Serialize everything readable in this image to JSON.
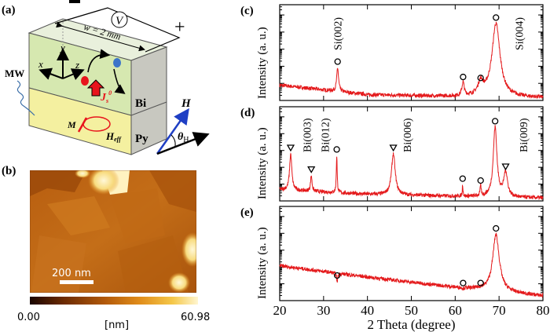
{
  "panel_labels": {
    "a": "(a)",
    "b": "(b)",
    "c": "(c)",
    "d": "(d)",
    "e": "(e)"
  },
  "diagram": {
    "voltmeter": "V",
    "plus": "+",
    "width_label": "w = 2 mm",
    "axis_x": "x",
    "axis_y": "y",
    "axis_z": "z",
    "microwave": "MW",
    "spin_current": "J",
    "spin_current_sub": "s",
    "spin_current_sup": "0",
    "layer_top": "Bi",
    "layer_bottom": "Py",
    "magnetization": "M",
    "effective_field": "H",
    "effective_field_sub": "eff",
    "field": "H",
    "angle": "θ",
    "angle_sub": "H",
    "colors": {
      "bi_layer": "#d6e8b0",
      "py_layer": "#f4f0a0",
      "spin_up": "#e8141c",
      "spin_down": "#3b74c9",
      "field": "#1f3fc4"
    }
  },
  "afm": {
    "scale_bar": "200 nm",
    "colorbar_min": "0.00",
    "colorbar_max": "60.98",
    "colorbar_unit": "[nm]",
    "colormap": [
      "#1a0500",
      "#6b2a02",
      "#b35a0a",
      "#e08c1a",
      "#f5c84a",
      "#fff6d0"
    ]
  },
  "chart_data": [
    {
      "panel": "c",
      "type": "line",
      "xlabel": "2 Theta (degree)",
      "ylabel": "Intensity (a. u.)",
      "xlim": [
        20,
        80
      ],
      "yscale": "log",
      "color": "#e41a1c",
      "xticks": [
        20,
        30,
        40,
        50,
        60,
        70,
        80
      ],
      "baseline": [
        [
          20,
          0.16
        ],
        [
          40,
          0.06
        ],
        [
          60,
          0.04
        ],
        [
          80,
          0.03
        ]
      ],
      "peaks": [
        {
          "position": 33.2,
          "intensity": 0.34,
          "width": 0.25,
          "marker": "circle"
        },
        {
          "position": 61.8,
          "intensity": 0.18,
          "width": 0.3,
          "marker": "circle"
        },
        {
          "position": 65.8,
          "intensity": 0.17,
          "width": 0.7,
          "marker": "circle"
        },
        {
          "position": 69.3,
          "intensity": 0.8,
          "width": 1.1,
          "marker": "circle"
        }
      ],
      "annotations": [
        {
          "text": "Si(002)",
          "x": 33.2
        },
        {
          "text": "Si(004)",
          "x": 74.5
        }
      ]
    },
    {
      "panel": "d",
      "type": "line",
      "xlabel": "2 Theta (degree)",
      "ylabel": "Intensity (a. u.)",
      "xlim": [
        20,
        80
      ],
      "yscale": "log",
      "color": "#e41a1c",
      "xticks": [
        20,
        30,
        40,
        50,
        60,
        70,
        80
      ],
      "baseline": [
        [
          20,
          0.12
        ],
        [
          40,
          0.07
        ],
        [
          60,
          0.05
        ],
        [
          80,
          0.03
        ]
      ],
      "peaks": [
        {
          "position": 22.5,
          "intensity": 0.5,
          "width": 0.3,
          "marker": "triangle"
        },
        {
          "position": 27.2,
          "intensity": 0.27,
          "width": 0.2,
          "marker": "triangle"
        },
        {
          "position": 33.0,
          "intensity": 0.48,
          "width": 0.12,
          "marker": "circle"
        },
        {
          "position": 45.9,
          "intensity": 0.5,
          "width": 0.5,
          "marker": "triangle"
        },
        {
          "position": 61.7,
          "intensity": 0.17,
          "width": 0.1,
          "marker": "circle"
        },
        {
          "position": 65.8,
          "intensity": 0.15,
          "width": 0.15,
          "marker": "circle"
        },
        {
          "position": 69.1,
          "intensity": 0.78,
          "width": 0.5,
          "marker": "circle"
        },
        {
          "position": 71.5,
          "intensity": 0.3,
          "width": 0.5,
          "marker": "triangle"
        }
      ],
      "annotations": [
        {
          "text": "Bi(003)",
          "x": 26.2
        },
        {
          "text": "Bi(012)",
          "x": 30.3
        },
        {
          "text": "Bi(006)",
          "x": 49.0
        },
        {
          "text": "Bi(009)",
          "x": 75.5
        }
      ]
    },
    {
      "panel": "e",
      "type": "line",
      "xlabel": "2 Theta (degree)",
      "ylabel": "Intensity (a. u.)",
      "xlim": [
        20,
        80
      ],
      "yscale": "log",
      "color": "#e41a1c",
      "xticks": [
        20,
        30,
        40,
        50,
        60,
        70,
        80
      ],
      "baseline": [
        [
          20,
          0.37
        ],
        [
          40,
          0.25
        ],
        [
          60,
          0.14
        ],
        [
          80,
          0.05
        ]
      ],
      "peaks": [
        {
          "position": 33.1,
          "intensity": 0.2,
          "width": 0.15,
          "marker": "circle"
        },
        {
          "position": 61.8,
          "intensity": 0.12,
          "width": 0.3,
          "marker": "circle"
        },
        {
          "position": 65.8,
          "intensity": 0.12,
          "width": 0.6,
          "marker": "circle"
        },
        {
          "position": 69.3,
          "intensity": 0.7,
          "width": 0.9,
          "marker": "circle"
        }
      ],
      "annotations": []
    }
  ]
}
